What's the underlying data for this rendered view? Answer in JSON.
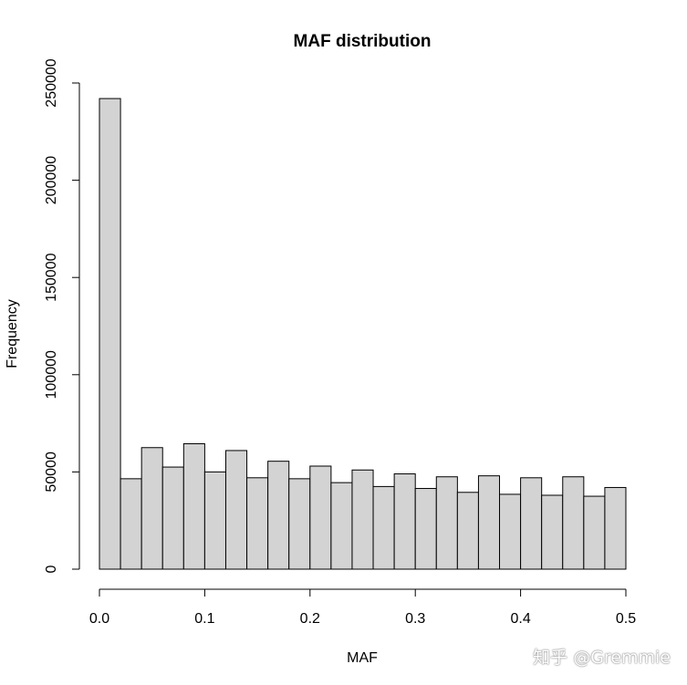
{
  "chart_data": {
    "type": "bar",
    "title": "MAF distribution",
    "xlabel": "MAF",
    "ylabel": "Frequency",
    "bin_width": 0.02,
    "bins_start": [
      0.0,
      0.02,
      0.04,
      0.06,
      0.08,
      0.1,
      0.12,
      0.14,
      0.16,
      0.18,
      0.2,
      0.22,
      0.24,
      0.26,
      0.28,
      0.3,
      0.32,
      0.34,
      0.36,
      0.38,
      0.4,
      0.42,
      0.44,
      0.46,
      0.48
    ],
    "values": [
      242000,
      46500,
      62500,
      52500,
      64500,
      50000,
      61000,
      47000,
      55500,
      46500,
      53000,
      44500,
      51000,
      42500,
      49000,
      41500,
      47500,
      39500,
      48000,
      38500,
      47000,
      38000,
      47500,
      37500,
      42000
    ],
    "xlim": [
      0,
      0.5
    ],
    "ylim": [
      0,
      250000
    ],
    "xticks": [
      0.0,
      0.1,
      0.2,
      0.3,
      0.4,
      0.5
    ],
    "xtick_labels": [
      "0.0",
      "0.1",
      "0.2",
      "0.3",
      "0.4",
      "0.5"
    ],
    "yticks": [
      0,
      50000,
      100000,
      150000,
      200000,
      250000
    ],
    "ytick_labels": [
      "0",
      "50000",
      "100000",
      "150000",
      "200000",
      "250000"
    ],
    "grid": false,
    "bar_color": "#d3d3d3",
    "edge_color": "#000000"
  },
  "watermark": "知乎 @Gremmie"
}
